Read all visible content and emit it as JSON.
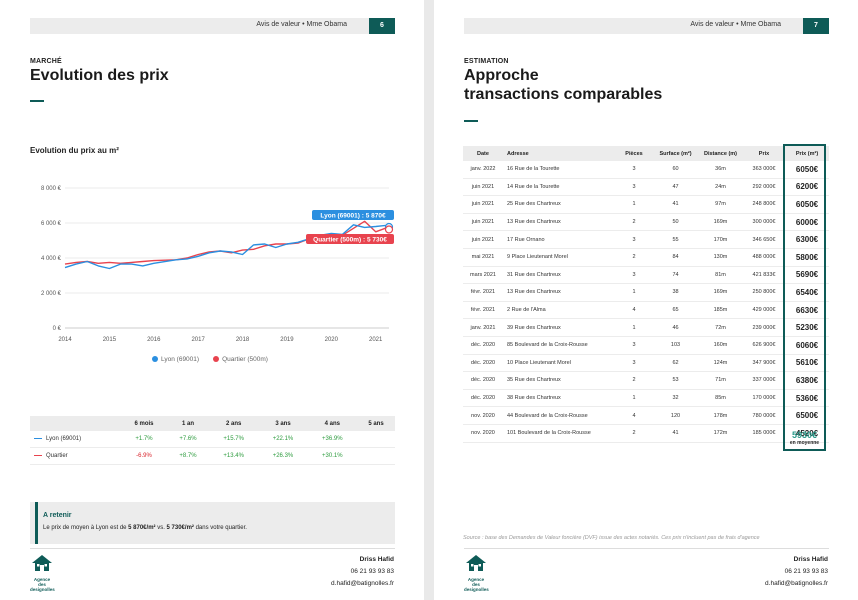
{
  "colors": {
    "accent": "#0e5b57",
    "lyon": "#2b8fe0",
    "quartier": "#e8434e",
    "positive": "#2e9c3f",
    "negative": "#d9232b",
    "average": "#2a9a8a"
  },
  "header": {
    "text": "Avis de valeur • Mme Obama"
  },
  "page1": {
    "page_number": "6",
    "kicker": "MARCHÉ",
    "title": "Evolution des prix",
    "chart_title": "Evolution du prix au m²",
    "callouts": {
      "lyon": "Lyon (69001) : 5 870€",
      "quartier": "Quartier (500m) : 5 730€"
    },
    "perf_table": {
      "headers": [
        "",
        "6 mois",
        "1 an",
        "2 ans",
        "3 ans",
        "4 ans",
        "5 ans"
      ],
      "rows": [
        {
          "name": "Lyon (69001)",
          "values": [
            "+1.7%",
            "+7.6%",
            "+15.7%",
            "+22.1%",
            "+36.9%",
            ""
          ],
          "signs": [
            "pos",
            "pos",
            "pos",
            "pos",
            "pos",
            ""
          ]
        },
        {
          "name": "Quartier",
          "values": [
            "-6.9%",
            "+8.7%",
            "+13.4%",
            "+26.3%",
            "+30.1%",
            ""
          ],
          "signs": [
            "neg",
            "pos",
            "pos",
            "pos",
            "pos",
            ""
          ]
        }
      ]
    },
    "retain": {
      "title": "A retenir",
      "text_pre": "Le prix de moyen à Lyon est de ",
      "lyon_value": "5 870€/m²",
      "text_mid": " vs. ",
      "quartier_value": "5 730€/m²",
      "text_post": " dans votre quartier."
    }
  },
  "page2": {
    "page_number": "7",
    "kicker": "ESTIMATION",
    "title_line1": "Approche",
    "title_line2": "transactions comparables",
    "table": {
      "headers": [
        "Date",
        "Adresse",
        "Pièces",
        "Surface (m²)",
        "Distance (m)",
        "Prix",
        "Prix (m²)"
      ],
      "rows": [
        [
          "janv. 2022",
          "16 Rue de la Tourette",
          "3",
          "60",
          "36m",
          "363 000€",
          "6050€"
        ],
        [
          "juin 2021",
          "14 Rue de la Tourette",
          "3",
          "47",
          "24m",
          "292 000€",
          "6200€"
        ],
        [
          "juin 2021",
          "25 Rue des Chartreux",
          "1",
          "41",
          "97m",
          "248 800€",
          "6050€"
        ],
        [
          "juin 2021",
          "13 Rue des Chartreux",
          "2",
          "50",
          "169m",
          "300 000€",
          "6000€"
        ],
        [
          "juin 2021",
          "17 Rue Ornano",
          "3",
          "55",
          "170m",
          "346 650€",
          "6300€"
        ],
        [
          "mai 2021",
          "9 Place Lieutenant Morel",
          "2",
          "84",
          "130m",
          "488 000€",
          "5800€"
        ],
        [
          "mars 2021",
          "31 Rue des Chartreux",
          "3",
          "74",
          "81m",
          "421 833€",
          "5690€"
        ],
        [
          "févr. 2021",
          "13 Rue des Chartreux",
          "1",
          "38",
          "169m",
          "250 800€",
          "6540€"
        ],
        [
          "févr. 2021",
          "2 Rue de l'Alma",
          "4",
          "65",
          "185m",
          "429 000€",
          "6630€"
        ],
        [
          "janv. 2021",
          "39 Rue des Chartreux",
          "1",
          "46",
          "72m",
          "239 000€",
          "5230€"
        ],
        [
          "déc. 2020",
          "85 Boulevard de la Croix-Rousse",
          "3",
          "103",
          "160m",
          "626 900€",
          "6060€"
        ],
        [
          "déc. 2020",
          "10 Place Lieutenant Morel",
          "3",
          "62",
          "124m",
          "347 900€",
          "5610€"
        ],
        [
          "déc. 2020",
          "35 Rue des Chartreux",
          "2",
          "53",
          "71m",
          "337 000€",
          "6380€"
        ],
        [
          "déc. 2020",
          "38 Rue des Chartreux",
          "1",
          "32",
          "85m",
          "170 000€",
          "5360€"
        ],
        [
          "nov. 2020",
          "44 Boulevard de la Croix-Rousse",
          "4",
          "120",
          "178m",
          "780 000€",
          "6500€"
        ],
        [
          "nov. 2020",
          "101 Boulevard de la Croix-Rousse",
          "2",
          "41",
          "172m",
          "185 000€",
          "4520€"
        ]
      ],
      "average_value": "5930€",
      "average_label": "en moyenne"
    },
    "source": "Source : base des Demandes de Valeur foncière (DVF) issue des actes notariés. Ces prix n'incluent pas de frais d'agence"
  },
  "footer": {
    "logo_text": "Agence des",
    "logo_text2": "designolles",
    "name": "Driss Hafid",
    "phone": "06 21 93 93 83",
    "email": "d.hafid@batignolles.fr"
  },
  "chart_data": {
    "type": "line",
    "title": "Evolution du prix au m²",
    "x_ticks": [
      "2014",
      "2015",
      "2016",
      "2017",
      "2018",
      "2019",
      "2020",
      "2021"
    ],
    "y_ticks": [
      "0 €",
      "2 000 €",
      "4 000 €",
      "6 000 €",
      "8 000 €"
    ],
    "xlim": [
      2014,
      2021.3
    ],
    "ylim": [
      0,
      8000
    ],
    "legend": [
      "Lyon (69001)",
      "Quartier (500m)"
    ],
    "legend_position": "bottom",
    "series": [
      {
        "name": "Lyon (69001)",
        "x": [
          2014,
          2014.25,
          2014.5,
          2014.75,
          2015,
          2015.25,
          2015.5,
          2015.75,
          2016,
          2016.5,
          2016.75,
          2017,
          2017.25,
          2017.5,
          2017.75,
          2018,
          2018.25,
          2018.5,
          2018.75,
          2019,
          2019.25,
          2019.5,
          2019.75,
          2020,
          2020.25,
          2020.5,
          2020.75,
          2021,
          2021.25
        ],
        "y": [
          3450,
          3650,
          3800,
          3550,
          3400,
          3650,
          3650,
          3550,
          3700,
          3900,
          3950,
          4100,
          4300,
          4400,
          4350,
          4200,
          4750,
          4800,
          4600,
          4800,
          4900,
          5100,
          5300,
          5400,
          5350,
          5900,
          5750,
          5800,
          5870
        ]
      },
      {
        "name": "Quartier (500m)",
        "x": [
          2014,
          2014.25,
          2014.5,
          2014.75,
          2015,
          2015.25,
          2015.5,
          2015.75,
          2016,
          2016.5,
          2016.75,
          2017,
          2017.25,
          2017.5,
          2017.75,
          2018,
          2018.25,
          2018.5,
          2018.75,
          2019,
          2019.25,
          2019.5,
          2019.75,
          2020,
          2020.25,
          2020.5,
          2020.75,
          2021,
          2021.25
        ],
        "y": [
          3650,
          3750,
          3800,
          3700,
          3750,
          3700,
          3750,
          3800,
          3850,
          3900,
          4000,
          4200,
          4350,
          4400,
          4300,
          4450,
          4500,
          4700,
          4800,
          4800,
          4850,
          5100,
          5150,
          5200,
          5300,
          5700,
          6100,
          5500,
          5730
        ]
      }
    ]
  }
}
